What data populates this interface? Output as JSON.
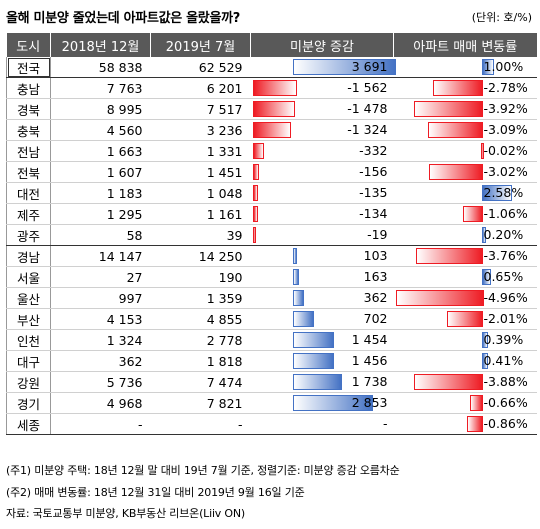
{
  "title": "올해 미분양 줄었는데 아파트값은 올랐을까?",
  "unit": "(단위: 호/%)",
  "headers": [
    "도시",
    "2018년 12월",
    "2019년 7월",
    "미분양 증감",
    "아파트 매매 변동률"
  ],
  "colors": {
    "neg_bar": "#ee1c24",
    "pos_bar": "#4472c4",
    "header_bg": "#595959"
  },
  "rows": [
    {
      "region": "전국",
      "dec2018": "58 838",
      "jul2019": "62 529",
      "change": 3691,
      "change_label": "3 691",
      "rate": 1.0,
      "rate_label": "1.00%"
    },
    {
      "region": "충남",
      "dec2018": "7 763",
      "jul2019": "6 201",
      "change": -1562,
      "change_label": "-1 562",
      "rate": -2.78,
      "rate_label": "-2.78%"
    },
    {
      "region": "경북",
      "dec2018": "8 995",
      "jul2019": "7 517",
      "change": -1478,
      "change_label": "-1 478",
      "rate": -3.92,
      "rate_label": "-3.92%"
    },
    {
      "region": "충북",
      "dec2018": "4 560",
      "jul2019": "3 236",
      "change": -1324,
      "change_label": "-1 324",
      "rate": -3.09,
      "rate_label": "-3.09%"
    },
    {
      "region": "전남",
      "dec2018": "1 663",
      "jul2019": "1 331",
      "change": -332,
      "change_label": "-332",
      "rate": -0.02,
      "rate_label": "-0.02%"
    },
    {
      "region": "전북",
      "dec2018": "1 607",
      "jul2019": "1 451",
      "change": -156,
      "change_label": "-156",
      "rate": -3.02,
      "rate_label": "-3.02%"
    },
    {
      "region": "대전",
      "dec2018": "1 183",
      "jul2019": "1 048",
      "change": -135,
      "change_label": "-135",
      "rate": 2.58,
      "rate_label": "2.58%"
    },
    {
      "region": "제주",
      "dec2018": "1 295",
      "jul2019": "1 161",
      "change": -134,
      "change_label": "-134",
      "rate": -1.06,
      "rate_label": "-1.06%"
    },
    {
      "region": "광주",
      "dec2018": "58",
      "jul2019": "39",
      "change": -19,
      "change_label": "-19",
      "rate": 0.2,
      "rate_label": "0.20%"
    },
    {
      "region": "경남",
      "dec2018": "14 147",
      "jul2019": "14 250",
      "change": 103,
      "change_label": "103",
      "rate": -3.76,
      "rate_label": "-3.76%"
    },
    {
      "region": "서울",
      "dec2018": "27",
      "jul2019": "190",
      "change": 163,
      "change_label": "163",
      "rate": 0.65,
      "rate_label": "0.65%"
    },
    {
      "region": "울산",
      "dec2018": "997",
      "jul2019": "1 359",
      "change": 362,
      "change_label": "362",
      "rate": -4.96,
      "rate_label": "-4.96%"
    },
    {
      "region": "부산",
      "dec2018": "4 153",
      "jul2019": "4 855",
      "change": 702,
      "change_label": "702",
      "rate": -2.01,
      "rate_label": "-2.01%"
    },
    {
      "region": "인천",
      "dec2018": "1 324",
      "jul2019": "2 778",
      "change": 1454,
      "change_label": "1 454",
      "rate": 0.39,
      "rate_label": "0.39%"
    },
    {
      "region": "대구",
      "dec2018": "362",
      "jul2019": "1 818",
      "change": 1456,
      "change_label": "1 456",
      "rate": 0.41,
      "rate_label": "0.41%"
    },
    {
      "region": "강원",
      "dec2018": "5 736",
      "jul2019": "7 474",
      "change": 1738,
      "change_label": "1 738",
      "rate": -3.88,
      "rate_label": "-3.88%"
    },
    {
      "region": "경기",
      "dec2018": "4 968",
      "jul2019": "7 821",
      "change": 2853,
      "change_label": "2 853",
      "rate": -0.66,
      "rate_label": "-0.66%"
    },
    {
      "region": "세종",
      "dec2018": "-",
      "jul2019": "-",
      "change": null,
      "change_label": "-",
      "rate": -0.86,
      "rate_label": "-0.86%"
    }
  ],
  "notes": [
    "(주1) 미분양 주택: 18년 12월 말 대비 19년 7월 기준, 정렬기준: 미분양 증감 오름차순",
    "(주2) 매매 변동률: 18년 12월 31일 대비 2019년 9월 16일 기준",
    "자료: 국토교통부 미분양, KB부동산 리브온(Liiv ON)"
  ]
}
